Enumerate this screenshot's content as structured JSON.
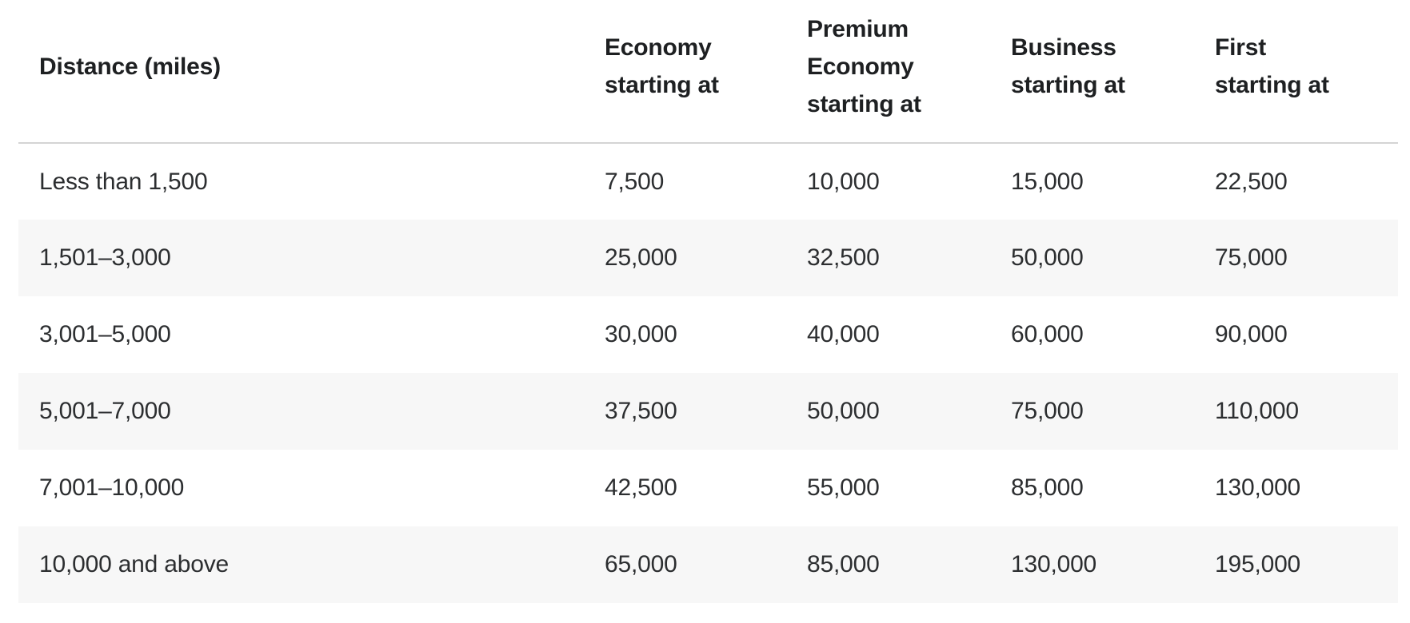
{
  "chart_data": {
    "type": "table",
    "columns": [
      "Distance (miles)",
      "Economy starting at",
      "Premium Economy starting at",
      "Business starting at",
      "First starting at"
    ],
    "header_lines": [
      [
        "Distance (miles)"
      ],
      [
        "Economy",
        "starting at"
      ],
      [
        "Premium",
        "Economy",
        "starting at"
      ],
      [
        "Business",
        "starting at"
      ],
      [
        "First",
        "starting at"
      ]
    ],
    "rows": [
      {
        "distance": "Less than 1,500",
        "economy": "7,500",
        "premium_economy": "10,000",
        "business": "15,000",
        "first": "22,500"
      },
      {
        "distance": "1,501–3,000",
        "economy": "25,000",
        "premium_economy": "32,500",
        "business": "50,000",
        "first": "75,000"
      },
      {
        "distance": "3,001–5,000",
        "economy": "30,000",
        "premium_economy": "40,000",
        "business": "60,000",
        "first": "90,000"
      },
      {
        "distance": "5,001–7,000",
        "economy": "37,500",
        "premium_economy": "50,000",
        "business": "75,000",
        "first": "110,000"
      },
      {
        "distance": "7,001–10,000",
        "economy": "42,500",
        "premium_economy": "55,000",
        "business": "85,000",
        "first": "130,000"
      },
      {
        "distance": "10,000 and above",
        "economy": "65,000",
        "premium_economy": "85,000",
        "business": "130,000",
        "first": "195,000"
      }
    ]
  },
  "colors": {
    "background": "#ffffff",
    "row_stripe": "#f7f7f7",
    "header_divider": "#d4d4d4",
    "header_text": "#1e2022",
    "body_text": "#2c2e30"
  }
}
